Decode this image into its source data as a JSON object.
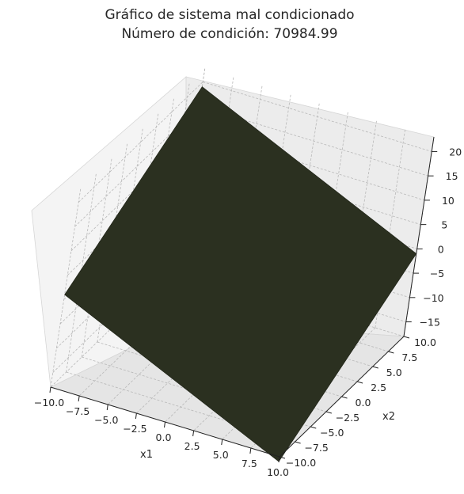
{
  "chart_data": {
    "type": "surface3d",
    "title": "Gráfico de sistema mal condicionado",
    "subtitle": "Número de condición: 70984.99",
    "xlabel": "x1",
    "ylabel": "x2",
    "zlabel": "",
    "xlim": [
      -10.0,
      10.0
    ],
    "ylim": [
      -10.0,
      10.0
    ],
    "zlim": [
      -18,
      23
    ],
    "x_ticks": [
      "−10.0",
      "−7.5",
      "−5.0",
      "−2.5",
      "0.0",
      "2.5",
      "5.0",
      "7.5",
      "10.0"
    ],
    "y_ticks": [
      "−10.0",
      "−7.5",
      "−5.0",
      "−2.5",
      "0.0",
      "2.5",
      "5.0",
      "7.5",
      "10.0"
    ],
    "z_ticks": [
      "−15",
      "−10",
      "−5",
      "0",
      "5",
      "10",
      "15",
      "20"
    ],
    "surface": {
      "corners": [
        {
          "x1": -10,
          "x2": -10,
          "z": 1
        },
        {
          "x1": 10,
          "x2": -10,
          "z": -19
        },
        {
          "x1": 10,
          "x2": 10,
          "z": -1
        },
        {
          "x1": -10,
          "x2": 10,
          "z": 19
        }
      ],
      "color": "#2b3020"
    },
    "grid": true,
    "pane_color": "#f2f2f2"
  }
}
